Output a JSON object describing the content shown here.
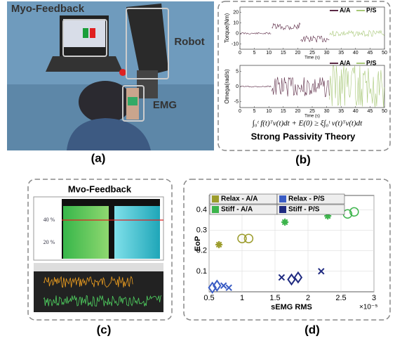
{
  "panel_a": {
    "labels": [
      "Myo-Feedback",
      "Robot",
      "EMG"
    ],
    "caption": "(a)"
  },
  "panel_b": {
    "caption": "(b)",
    "formula": "∫₀ᵗ f(t)ᵀv(t)dt + E(0) ≥ ξ∫₀ᵗ v(t)ᵀv(t)dt",
    "theory": "Strong Passivity Theory",
    "legend": [
      "A/A",
      "P/S"
    ],
    "legend_colors": [
      "#5b2a45",
      "#a8c878"
    ],
    "plots": [
      {
        "ylabel": "Torque(Nm)",
        "xlabel": "Time (s)",
        "xlim": [
          0,
          50
        ],
        "xticks": [
          0,
          5,
          10,
          15,
          20,
          25,
          30,
          35,
          40,
          45,
          50
        ],
        "ylim": [
          -15,
          25
        ],
        "yticks": [
          20,
          10,
          0,
          -10
        ]
      },
      {
        "ylabel": "Omega(rad/s)",
        "xlabel": "Time (s)",
        "xlim": [
          0,
          50
        ],
        "xticks": [
          0,
          5,
          10,
          15,
          20,
          25,
          30,
          35,
          40,
          45,
          50
        ],
        "ylim": [
          -7,
          7
        ],
        "yticks": [
          5,
          0,
          -5
        ]
      }
    ]
  },
  "panel_c": {
    "title": "Mvo-Feedback",
    "caption": "(c)",
    "levels": [
      "40 %",
      "20 %"
    ]
  },
  "panel_d": {
    "caption": "(d)",
    "xlabel": "sEMG RMS",
    "ylabel": "EoP",
    "exponent": "×10⁻⁵",
    "xlim": [
      0.5,
      3
    ],
    "xticks": [
      0.5,
      1,
      1.5,
      2,
      2.5,
      3
    ],
    "ylim": [
      0,
      0.47
    ],
    "yticks": [
      0.1,
      0.2,
      0.3,
      0.4
    ],
    "series": [
      {
        "name": "Relax - A/A",
        "color": "#9c9c2c",
        "x": [
          0.65,
          1.0,
          1.1
        ],
        "values": [
          0.23,
          0.26,
          0.26
        ],
        "markers": [
          "star",
          "circle",
          "circle"
        ]
      },
      {
        "name": "Relax - P/S",
        "color": "#3a5cc4",
        "x": [
          0.55,
          0.62,
          0.72,
          0.8
        ],
        "values": [
          0.02,
          0.03,
          0.03,
          0.02
        ],
        "markers": [
          "diamond",
          "diamond",
          "cross",
          "cross"
        ]
      },
      {
        "name": "Stiff - A/A",
        "color": "#3cb44b",
        "x": [
          1.65,
          2.3,
          2.6,
          2.7
        ],
        "values": [
          0.34,
          0.37,
          0.38,
          0.39
        ],
        "markers": [
          "star",
          "star",
          "circle",
          "circle"
        ]
      },
      {
        "name": "Stiff - P/S",
        "color": "#1f2a80",
        "x": [
          1.6,
          1.75,
          1.85,
          2.2
        ],
        "values": [
          0.07,
          0.06,
          0.07,
          0.1
        ],
        "markers": [
          "cross",
          "diamond",
          "diamond",
          "cross"
        ]
      }
    ]
  }
}
